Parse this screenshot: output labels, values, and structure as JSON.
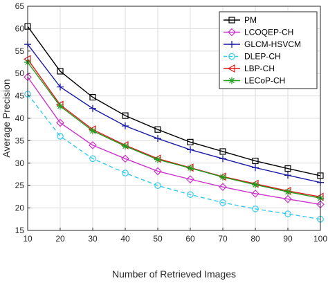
{
  "chart_data": {
    "type": "line",
    "title": "",
    "xlabel": "Number of Retrieved Images",
    "ylabel": "Average Precision",
    "x": [
      10,
      20,
      30,
      40,
      50,
      60,
      70,
      80,
      90,
      100
    ],
    "xlim": [
      10,
      100
    ],
    "ylim": [
      15,
      65
    ],
    "xticks": [
      "10",
      "20",
      "30",
      "40",
      "50",
      "60",
      "70",
      "80",
      "90",
      "100"
    ],
    "yticks": [
      "15",
      "20",
      "25",
      "30",
      "35",
      "40",
      "45",
      "50",
      "55",
      "60",
      "65"
    ],
    "grid": true,
    "legend_position": "top-right",
    "series": [
      {
        "name": "PM",
        "color": "#000000",
        "marker": "square",
        "dash": "solid",
        "values": [
          60.5,
          50.5,
          44.7,
          40.6,
          37.5,
          34.7,
          32.6,
          30.5,
          28.8,
          27.2
        ]
      },
      {
        "name": "LCOQEP-CH",
        "color": "#cc33cc",
        "marker": "diamond",
        "dash": "solid",
        "values": [
          49.2,
          39.0,
          34.0,
          31.0,
          28.2,
          26.4,
          24.7,
          23.2,
          22.0,
          20.8
        ]
      },
      {
        "name": "GLCM-HSVCM",
        "color": "#1a1aa6",
        "marker": "plus",
        "dash": "solid",
        "values": [
          56.5,
          47.0,
          42.2,
          38.3,
          35.5,
          33.0,
          31.0,
          29.0,
          27.3,
          25.7
        ]
      },
      {
        "name": "DLEP-CH",
        "color": "#33ccee",
        "marker": "circle",
        "dash": "dashed",
        "values": [
          45.4,
          36.0,
          31.0,
          27.8,
          25.0,
          23.0,
          21.2,
          19.8,
          18.7,
          17.5
        ]
      },
      {
        "name": "LBP-CH",
        "color": "#e01b1b",
        "marker": "triangle-left",
        "dash": "solid",
        "values": [
          53.2,
          43.0,
          37.5,
          34.0,
          31.0,
          29.0,
          27.0,
          25.4,
          23.8,
          22.5
        ]
      },
      {
        "name": "LECoP-CH",
        "color": "#1f9e1f",
        "marker": "star",
        "dash": "solid",
        "values": [
          52.5,
          42.7,
          37.2,
          33.8,
          30.8,
          28.9,
          26.9,
          25.2,
          23.6,
          22.2
        ]
      }
    ]
  }
}
